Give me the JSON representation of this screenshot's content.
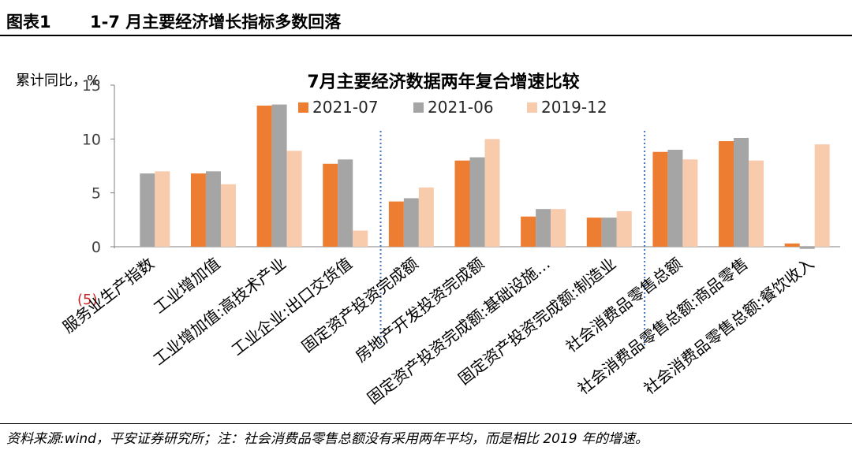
{
  "header": {
    "figure_label": "图表1",
    "figure_title": "1-7 月主要经济增长指标多数回落"
  },
  "footer": {
    "source": "资料来源:wind，平安证券研究所；注：社会消费品零售总额没有采用两年平均，而是相比 2019 年的增速。"
  },
  "colors": {
    "s2021_07": "#ED7D31",
    "s2021_06": "#A5A5A5",
    "s2019_12": "#F8CBAD",
    "divider": "#4472C4",
    "axis": "#7f7f7f"
  },
  "chart_data": {
    "type": "bar",
    "title": "7月主要经济数据两年复合增速比较",
    "ylabel": "累计同比，%",
    "ylim": [
      0,
      15
    ],
    "yticks": [
      "0",
      "5",
      "10",
      "15"
    ],
    "legend_position": "top",
    "categories": [
      "服务业生产指数",
      "工业增加值",
      "工业增加值:高技术产业",
      "工业企业:出口交货值",
      "固定资产投资完成额",
      "房地产开发投资完成额",
      "固定资产投资完成额:基础设施…",
      "固定资产投资完成额:制造业",
      "社会消费品零售总额",
      "社会消费品零售总额:商品零售",
      "社会消费品零售总额:餐饮收入"
    ],
    "series": [
      {
        "name": "2021-07",
        "values": [
          0,
          6.8,
          13.1,
          7.7,
          4.2,
          8.0,
          2.8,
          2.7,
          8.8,
          9.8,
          0.3
        ]
      },
      {
        "name": "2021-06",
        "values": [
          6.8,
          7.0,
          13.2,
          8.1,
          4.5,
          8.3,
          3.5,
          2.7,
          9.0,
          10.1,
          -0.2
        ]
      },
      {
        "name": "2019-12",
        "values": [
          7.0,
          5.8,
          8.9,
          1.5,
          5.5,
          10.0,
          3.5,
          3.3,
          8.1,
          8.0,
          9.5
        ]
      }
    ],
    "dividers_after_category": [
      3,
      7
    ],
    "annotation": "(5)"
  }
}
